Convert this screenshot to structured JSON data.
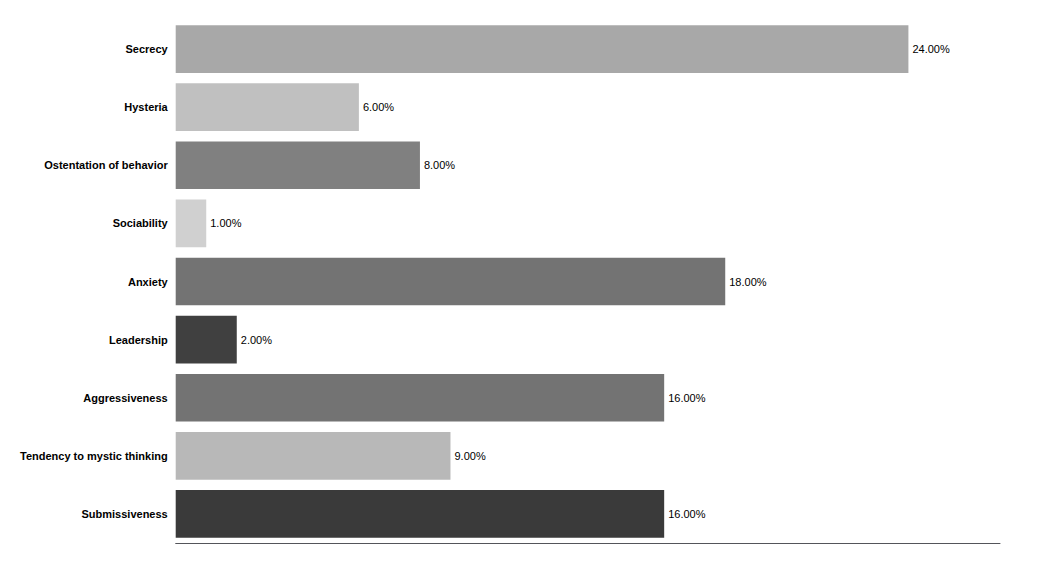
{
  "chart_data": {
    "type": "bar",
    "orientation": "horizontal",
    "categories": [
      "Submissiveness",
      "Tendency to mystic thinking",
      "Aggressiveness",
      "Leadership",
      "Anxiety",
      "Sociability",
      "Ostentation of behavior",
      "Hysteria",
      "Secrecy"
    ],
    "values": [
      16.0,
      9.0,
      16.0,
      2.0,
      18.0,
      1.0,
      8.0,
      6.0,
      24.0
    ],
    "value_labels": [
      "16.00%",
      "9.00%",
      "16.00%",
      "2.00%",
      "18.00%",
      "1.00%",
      "8.00%",
      "6.00%",
      "24.00%"
    ],
    "colors": [
      "#3a3a3a",
      "#b8b8b8",
      "#737373",
      "#404040",
      "#737373",
      "#d0d0d0",
      "#808080",
      "#c0c0c0",
      "#a8a8a8"
    ],
    "xlim": [
      0,
      27
    ],
    "data_labels": true,
    "tick_labels": "y",
    "grid": false
  }
}
